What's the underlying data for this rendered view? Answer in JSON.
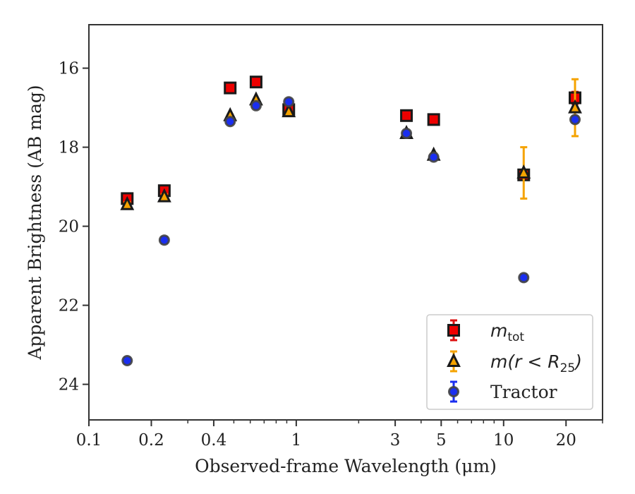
{
  "chart_data": {
    "type": "scatter",
    "xscale": "log",
    "yaxis_inverted": true,
    "xlabel": "Observed-frame Wavelength (μm)",
    "ylabel": "Apparent Brightness (AB mag)",
    "xlim": [
      0.1,
      30
    ],
    "ylim": [
      24.9,
      14.9
    ],
    "xticks": [
      {
        "value": 0.1,
        "label": "0.1"
      },
      {
        "value": 0.2,
        "label": "0.2"
      },
      {
        "value": 0.4,
        "label": "0.4"
      },
      {
        "value": 1,
        "label": "1"
      },
      {
        "value": 3,
        "label": "3"
      },
      {
        "value": 5,
        "label": "5"
      },
      {
        "value": 10,
        "label": "10"
      },
      {
        "value": 20,
        "label": "20"
      }
    ],
    "yticks": [
      {
        "value": 16,
        "label": "16"
      },
      {
        "value": 18,
        "label": "18"
      },
      {
        "value": 20,
        "label": "20"
      },
      {
        "value": 22,
        "label": "22"
      },
      {
        "value": 24,
        "label": "24"
      }
    ],
    "legend_position": "lower-right",
    "series": [
      {
        "key": "mtot",
        "legend": {
          "base": "m",
          "sub": "tot"
        },
        "marker": "square",
        "fill": "#ee0000",
        "errcolor": "#dd1111",
        "x": [
          0.153,
          0.231,
          0.48,
          0.64,
          0.92,
          3.4,
          4.6,
          12.5,
          22.1
        ],
        "y": [
          19.3,
          19.1,
          16.5,
          16.35,
          17.05,
          17.2,
          17.3,
          18.7,
          16.75
        ],
        "err": [
          0.08,
          0.08,
          0.02,
          0.02,
          0.02,
          0.02,
          0.03,
          0.12,
          0.15
        ]
      },
      {
        "key": "m_r25",
        "legend": {
          "base": "m(r < R",
          "sub": "25",
          "close": ")"
        },
        "marker": "triangle",
        "fill": "#f5a300",
        "errcolor": "#f5a300",
        "x": [
          0.153,
          0.231,
          0.48,
          0.64,
          0.92,
          3.4,
          4.6,
          12.5,
          22.1
        ],
        "y": [
          19.45,
          19.25,
          17.2,
          16.8,
          17.1,
          17.65,
          18.2,
          18.65,
          17.0
        ],
        "err": [
          0.06,
          0.06,
          0.02,
          0.02,
          0.02,
          0.03,
          0.05,
          0.65,
          0.72
        ]
      },
      {
        "key": "tractor",
        "legend": {
          "text": "Tractor"
        },
        "marker": "circle",
        "fill": "#1a2ef0",
        "errcolor": "#1a2ef0",
        "x": [
          0.153,
          0.231,
          0.48,
          0.64,
          0.92,
          3.4,
          4.6,
          12.5,
          22.1
        ],
        "y": [
          23.4,
          20.35,
          17.35,
          16.95,
          16.85,
          17.65,
          18.25,
          21.3,
          17.3
        ],
        "err": [
          0.08,
          0.08,
          0.03,
          0.03,
          0.03,
          0.05,
          0.06,
          0.08,
          0.08
        ]
      }
    ]
  }
}
